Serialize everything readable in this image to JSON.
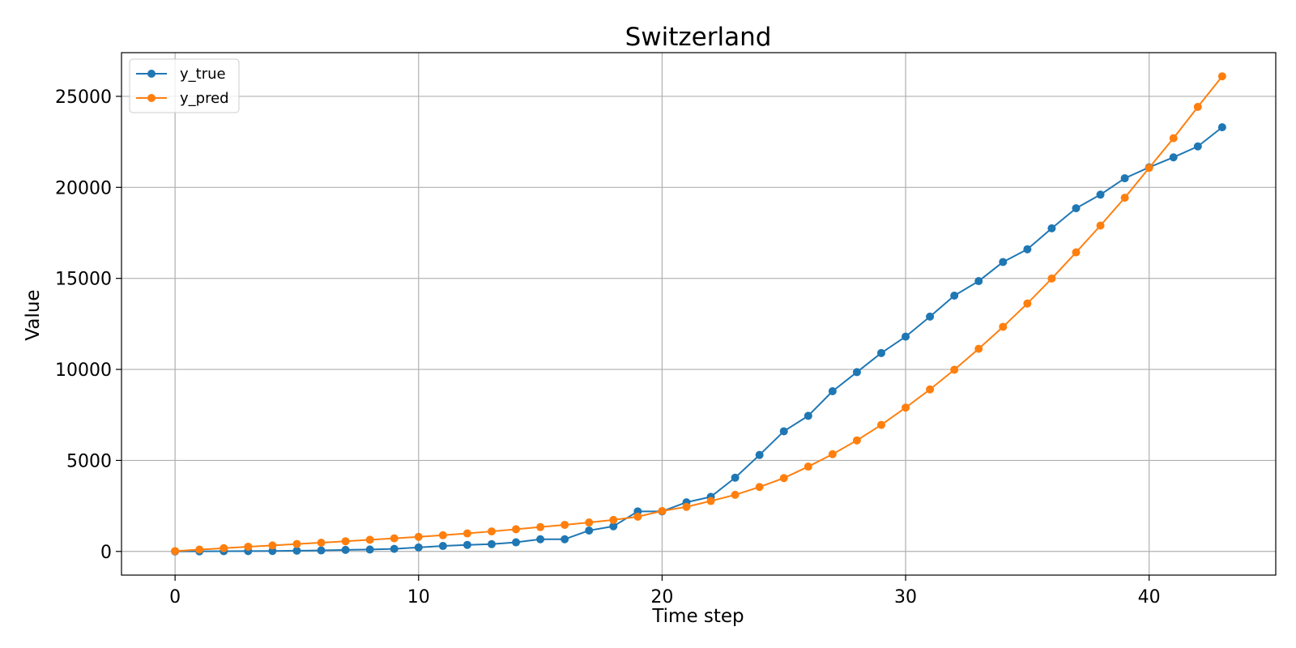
{
  "chart_data": {
    "type": "line",
    "title": "Switzerland",
    "xlabel": "Time step",
    "ylabel": "Value",
    "xlim": [
      -2.2,
      45.2
    ],
    "ylim": [
      -1300,
      27400
    ],
    "xticks": [
      0,
      10,
      20,
      30,
      40
    ],
    "yticks": [
      0,
      5000,
      10000,
      15000,
      20000,
      25000
    ],
    "grid": true,
    "legend": "top-left",
    "x": [
      0,
      1,
      2,
      3,
      4,
      5,
      6,
      7,
      8,
      9,
      10,
      11,
      12,
      13,
      14,
      15,
      16,
      17,
      18,
      19,
      20,
      21,
      22,
      23,
      24,
      25,
      26,
      27,
      28,
      29,
      30,
      31,
      32,
      33,
      34,
      35,
      36,
      37,
      38,
      39,
      40,
      41,
      42,
      43
    ],
    "series": [
      {
        "name": "y_true",
        "color": "#1f77b4",
        "values": [
          0,
          5,
          15,
          20,
          25,
          40,
          55,
          85,
          105,
          140,
          220,
          300,
          360,
          400,
          500,
          670,
          670,
          1150,
          1380,
          2200,
          2200,
          2700,
          3000,
          4050,
          5300,
          6600,
          7450,
          8800,
          9850,
          10900,
          11800,
          12900,
          14050,
          14850,
          15900,
          16600,
          17750,
          18850,
          19600,
          20500,
          21100,
          21650,
          22250,
          23300
        ]
      },
      {
        "name": "y_pred",
        "color": "#ff7f0e",
        "values": [
          20,
          100,
          180,
          260,
          330,
          410,
          480,
          560,
          640,
          720,
          800,
          890,
          990,
          1100,
          1220,
          1340,
          1460,
          1590,
          1730,
          1910,
          2220,
          2450,
          2770,
          3110,
          3540,
          4030,
          4660,
          5340,
          6100,
          6950,
          7900,
          8900,
          9980,
          11130,
          12340,
          13620,
          14990,
          16430,
          17900,
          19430,
          21070,
          22700,
          24420,
          26100
        ]
      }
    ]
  }
}
